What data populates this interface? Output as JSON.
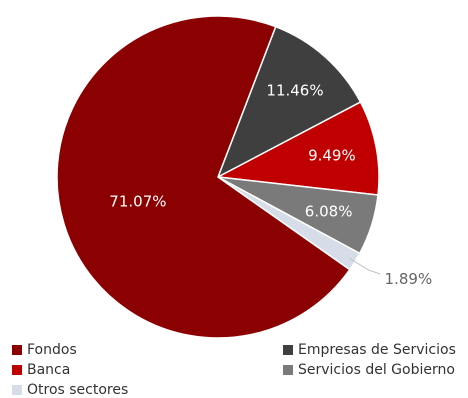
{
  "chart_data": {
    "type": "pie",
    "title": "",
    "slices": [
      {
        "name": "Empresas de Servicios",
        "value": 11.46,
        "label": "11.46%",
        "color": "#3f3f3f"
      },
      {
        "name": "Banca",
        "value": 9.49,
        "label": "9.49%",
        "color": "#c00000"
      },
      {
        "name": "Servicios del Gobierno",
        "value": 6.08,
        "label": "6.08%",
        "color": "#7a7a7a"
      },
      {
        "name": "Otros sectores",
        "value": 1.89,
        "label": "1.89%",
        "color": "#d6dce8"
      },
      {
        "name": "Fondos",
        "value": 71.07,
        "label": "71.07%",
        "color": "#8b0000"
      }
    ],
    "legend_position": "bottom",
    "legend": [
      {
        "name": "Fondos",
        "color": "#8b0000"
      },
      {
        "name": "Empresas de Servicios",
        "color": "#3f3f3f"
      },
      {
        "name": "Banca",
        "color": "#c00000"
      },
      {
        "name": "Servicios del Gobierno",
        "color": "#7a7a7a"
      },
      {
        "name": "Otros sectores",
        "color": "#d6dce8"
      }
    ]
  }
}
